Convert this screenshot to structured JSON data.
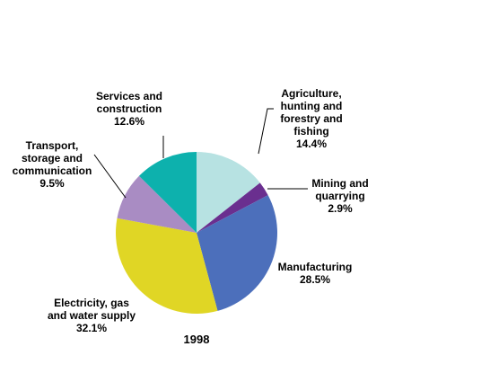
{
  "chart_data": {
    "type": "pie",
    "title": "1998",
    "legend": "none",
    "slices": [
      {
        "lines": [
          "Agriculture,",
          "hunting and",
          "forestry and",
          "fishing"
        ],
        "value": 14.4,
        "value_label": "14.4%",
        "color": "#b7e2e2"
      },
      {
        "lines": [
          "Mining and",
          "quarrying"
        ],
        "value": 2.9,
        "value_label": "2.9%",
        "color": "#6a2f8f"
      },
      {
        "lines": [
          "Manufacturing"
        ],
        "value": 28.5,
        "value_label": "28.5%",
        "color": "#4c6fbb"
      },
      {
        "lines": [
          "Electricity, gas",
          "and water supply"
        ],
        "value": 32.1,
        "value_label": "32.1%",
        "color": "#e0d625"
      },
      {
        "lines": [
          "Transport,",
          "storage and",
          "communication"
        ],
        "value": 9.5,
        "value_label": "9.5%",
        "color": "#a98cc3"
      },
      {
        "lines": [
          "Services and",
          "construction"
        ],
        "value": 12.6,
        "value_label": "12.6%",
        "color": "#0db1ad"
      }
    ]
  }
}
